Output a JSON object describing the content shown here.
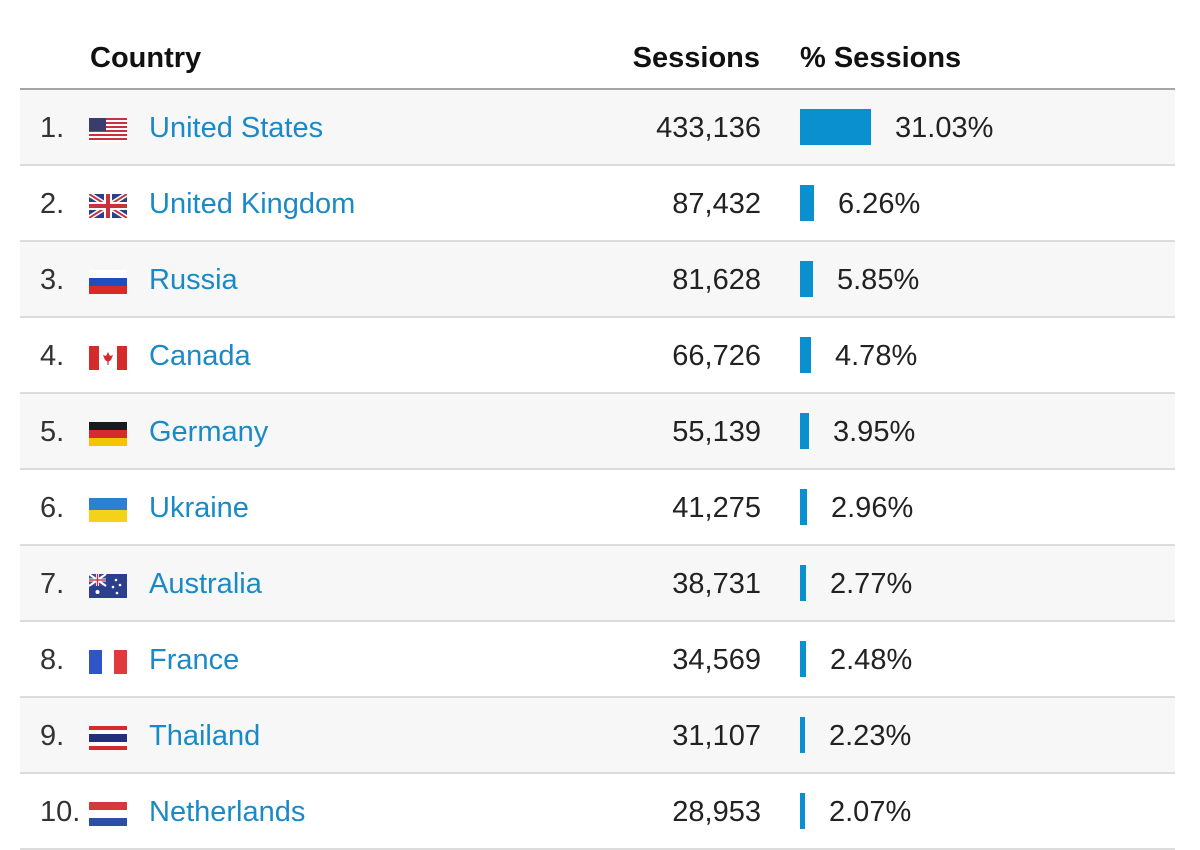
{
  "header": {
    "country": "Country",
    "sessions": "Sessions",
    "pct_sessions": "% Sessions"
  },
  "rows": [
    {
      "rank": "1.",
      "country": "United States",
      "sessions": "433,136",
      "pct": "31.03%",
      "pct_value": 31.03,
      "flag_icon": "us-flag-icon"
    },
    {
      "rank": "2.",
      "country": "United Kingdom",
      "sessions": "87,432",
      "pct": "6.26%",
      "pct_value": 6.26,
      "flag_icon": "uk-flag-icon"
    },
    {
      "rank": "3.",
      "country": "Russia",
      "sessions": "81,628",
      "pct": "5.85%",
      "pct_value": 5.85,
      "flag_icon": "russia-flag-icon"
    },
    {
      "rank": "4.",
      "country": "Canada",
      "sessions": "66,726",
      "pct": "4.78%",
      "pct_value": 4.78,
      "flag_icon": "canada-flag-icon"
    },
    {
      "rank": "5.",
      "country": "Germany",
      "sessions": "55,139",
      "pct": "3.95%",
      "pct_value": 3.95,
      "flag_icon": "germany-flag-icon"
    },
    {
      "rank": "6.",
      "country": "Ukraine",
      "sessions": "41,275",
      "pct": "2.96%",
      "pct_value": 2.96,
      "flag_icon": "ukraine-flag-icon"
    },
    {
      "rank": "7.",
      "country": "Australia",
      "sessions": "38,731",
      "pct": "2.77%",
      "pct_value": 2.77,
      "flag_icon": "australia-flag-icon"
    },
    {
      "rank": "8.",
      "country": "France",
      "sessions": "34,569",
      "pct": "2.48%",
      "pct_value": 2.48,
      "flag_icon": "france-flag-icon"
    },
    {
      "rank": "9.",
      "country": "Thailand",
      "sessions": "31,107",
      "pct": "2.23%",
      "pct_value": 2.23,
      "flag_icon": "thailand-flag-icon"
    },
    {
      "rank": "10.",
      "country": "Netherlands",
      "sessions": "28,953",
      "pct": "2.07%",
      "pct_value": 2.07,
      "flag_icon": "netherlands-flag-icon"
    }
  ],
  "colors": {
    "link": "#1a8ac7",
    "bar": "#0b90cf"
  }
}
